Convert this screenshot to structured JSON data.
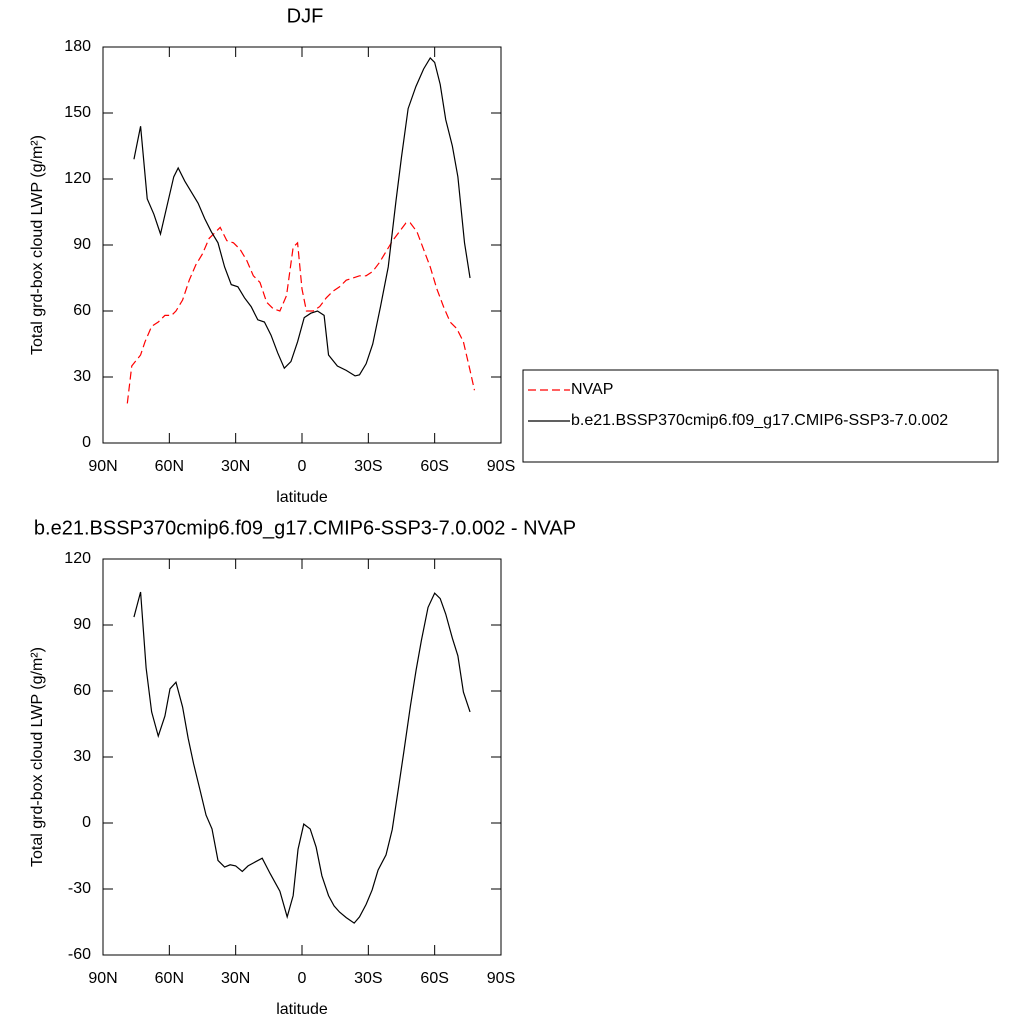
{
  "chart_data": [
    {
      "type": "line",
      "title": "DJF",
      "xlabel": "latitude",
      "ylabel": "Total grd-box cloud LWP (g/m²)",
      "xlim": [
        90,
        -90
      ],
      "xticks": [
        {
          "value": 90,
          "label": "90N"
        },
        {
          "value": 60,
          "label": "60N"
        },
        {
          "value": 30,
          "label": "30N"
        },
        0,
        {
          "value": -30,
          "label": "30S"
        },
        {
          "value": -60,
          "label": "60S"
        },
        {
          "value": -90,
          "label": "90S"
        }
      ],
      "ylim": [
        0,
        180
      ],
      "yticks": [
        0,
        30,
        60,
        90,
        120,
        150,
        180
      ],
      "legend": "right",
      "series": [
        {
          "name": "NVAP",
          "color": "#ff0000",
          "dash": "dashed",
          "x": [
            79,
            77,
            73,
            71,
            68,
            65,
            62,
            59,
            57,
            54,
            51,
            48,
            45,
            42,
            39,
            37,
            34,
            31,
            28,
            25,
            22,
            19,
            16,
            13,
            10,
            7,
            4,
            2,
            0,
            -2,
            -5,
            -8,
            -11,
            -14,
            -17,
            -20,
            -23,
            -26,
            -29,
            -32,
            -35,
            -38,
            -41,
            -44,
            -47,
            -49,
            -52,
            -55,
            -58,
            -61,
            -64,
            -67,
            -70,
            -73,
            -76,
            -78
          ],
          "values": [
            18,
            35,
            40,
            46,
            53,
            55,
            58,
            58,
            60,
            65,
            74,
            81,
            86,
            93,
            96,
            98,
            92,
            91,
            88,
            83,
            76,
            73,
            64,
            61,
            60,
            67,
            89,
            91,
            70,
            60,
            60,
            62,
            66,
            69,
            71,
            74,
            75,
            76,
            76,
            78,
            82,
            87,
            92,
            96,
            100,
            100,
            96,
            88,
            80,
            70,
            62,
            55,
            52,
            46,
            33,
            24
          ]
        },
        {
          "name": "b.e21.BSSP370cmip6.f09_g17.CMIP6-SSP3-7.0.002",
          "color": "#000000",
          "dash": "solid",
          "x": [
            76,
            73,
            70,
            67,
            64,
            61,
            58,
            56,
            53,
            50,
            47,
            44,
            41,
            38,
            35,
            32,
            29,
            26,
            23,
            20,
            17,
            14,
            11,
            8,
            5,
            2,
            -1,
            -4,
            -7,
            -10,
            -12,
            -16,
            -20,
            -24,
            -26,
            -29,
            -32,
            -35.5,
            -39,
            -42.5,
            -45,
            -48,
            -51.5,
            -55,
            -58,
            -60,
            -62.5,
            -65,
            -68,
            -70.5,
            -73.5,
            -76
          ],
          "values": [
            129,
            144,
            111,
            104,
            95,
            108,
            121,
            125,
            119,
            114,
            109,
            102,
            96,
            91,
            80,
            72,
            71,
            66,
            62,
            56,
            55,
            49,
            41,
            34,
            37,
            46,
            57,
            59,
            60,
            58,
            40,
            35,
            33,
            30.5,
            31,
            36,
            45,
            62,
            80,
            110,
            130,
            152,
            162,
            170,
            175,
            173,
            163,
            147,
            135,
            121,
            91,
            75
          ]
        }
      ]
    },
    {
      "type": "line",
      "title": "b.e21.BSSP370cmip6.f09_g17.CMIP6-SSP3-7.0.002 - NVAP",
      "xlabel": "latitude",
      "ylabel": "Total grd-box cloud LWP (g/m²)",
      "xlim": [
        90,
        -90
      ],
      "xticks": [
        {
          "value": 90,
          "label": "90N"
        },
        {
          "value": 60,
          "label": "60N"
        },
        {
          "value": 30,
          "label": "30N"
        },
        0,
        {
          "value": -30,
          "label": "30S"
        },
        {
          "value": -60,
          "label": "60S"
        },
        {
          "value": -90,
          "label": "90S"
        }
      ],
      "ylim": [
        -60,
        120
      ],
      "yticks": [
        -60,
        -30,
        0,
        30,
        60,
        90,
        120
      ],
      "series": [
        {
          "color": "#000000",
          "dash": "solid",
          "x": [
            76,
            73,
            70.5,
            68,
            65,
            62,
            59.7,
            57,
            54,
            51.5,
            49,
            46,
            43.4,
            40.7,
            38,
            35,
            32.5,
            30,
            27,
            24.4,
            21.7,
            18,
            14.4,
            10,
            6.7,
            4,
            1.8,
            -0.8,
            -3.7,
            -6.4,
            -9,
            -12,
            -14.5,
            -17,
            -20,
            -23.6,
            -26,
            -29,
            -31.7,
            -34.4,
            -38,
            -40.8,
            -43.5,
            -46,
            -49,
            -51.6,
            -54,
            -57,
            -60,
            -62.5,
            -65,
            -68,
            -70.5,
            -73,
            -76
          ],
          "values": [
            93.6,
            105,
            70.5,
            50.5,
            39.5,
            48.6,
            61,
            64,
            52.7,
            38.6,
            26.8,
            14.5,
            3.6,
            -2.7,
            -17,
            -20,
            -19,
            -19.5,
            -22,
            -19.5,
            -18,
            -16,
            -23,
            -31,
            -42.7,
            -33,
            -12,
            -0.5,
            -2.7,
            -11,
            -24,
            -33,
            -37.7,
            -40.5,
            -43,
            -45.5,
            -42.7,
            -37,
            -30.5,
            -21.4,
            -14.5,
            -3,
            15,
            32,
            53,
            69.5,
            83,
            98,
            104.5,
            102,
            95,
            84,
            76,
            59.5,
            50.5
          ]
        }
      ]
    }
  ]
}
